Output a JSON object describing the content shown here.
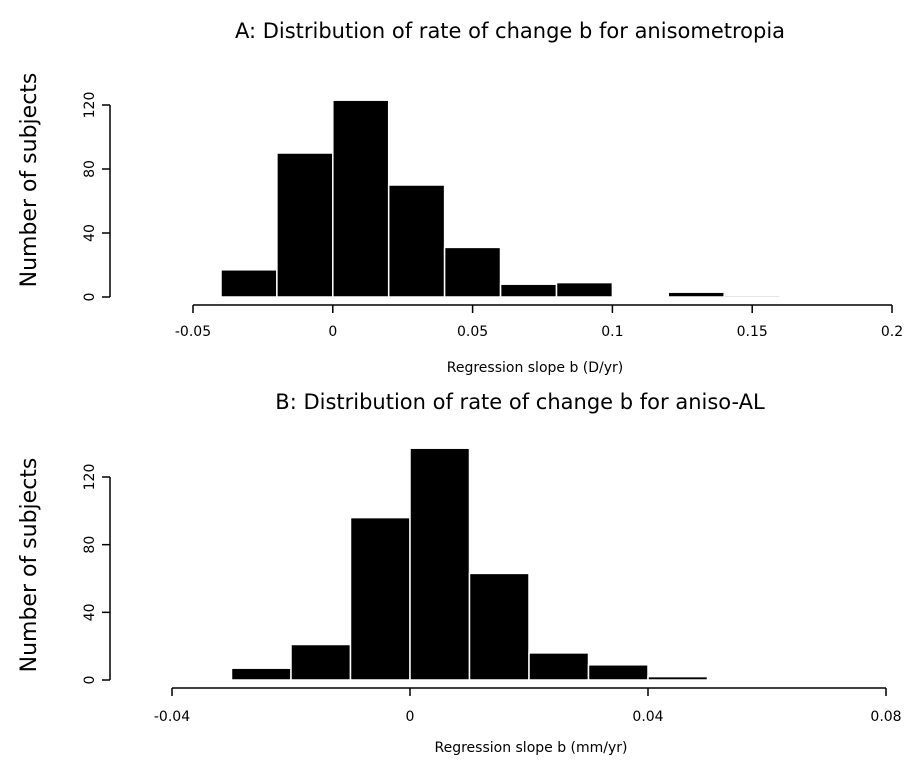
{
  "chart_data": [
    {
      "type": "bar",
      "title": "A: Distribution of rate of change b for anisometropia",
      "xlabel": "Regression slope b (D/yr)",
      "ylabel": "Number of subjects",
      "xlim": [
        -0.05,
        0.2
      ],
      "ylim": [
        0,
        120
      ],
      "x_ticks": [
        "-0.05",
        "0",
        "0.05",
        "0.1",
        "0.15",
        "0.2"
      ],
      "y_ticks": [
        "0",
        "40",
        "80",
        "120"
      ],
      "bins": [
        {
          "from": -0.04,
          "to": -0.02,
          "value": 17
        },
        {
          "from": -0.02,
          "to": 0.0,
          "value": 90
        },
        {
          "from": 0.0,
          "to": 0.02,
          "value": 123
        },
        {
          "from": 0.02,
          "to": 0.04,
          "value": 70
        },
        {
          "from": 0.04,
          "to": 0.06,
          "value": 31
        },
        {
          "from": 0.06,
          "to": 0.08,
          "value": 8
        },
        {
          "from": 0.08,
          "to": 0.1,
          "value": 9
        },
        {
          "from": 0.1,
          "to": 0.12,
          "value": 0
        },
        {
          "from": 0.12,
          "to": 0.14,
          "value": 3
        },
        {
          "from": 0.14,
          "to": 0.16,
          "value": 1
        }
      ],
      "grid": false
    },
    {
      "type": "bar",
      "title": "B: Distribution of rate of change b for aniso-AL",
      "xlabel": "Regression slope b (mm/yr)",
      "ylabel": "Number of subjects",
      "xlim": [
        -0.04,
        0.08
      ],
      "ylim": [
        0,
        120
      ],
      "x_ticks": [
        "-0.04",
        "0",
        "0.04",
        "0.08"
      ],
      "y_ticks": [
        "0",
        "40",
        "80",
        "120"
      ],
      "bins": [
        {
          "from": -0.03,
          "to": -0.02,
          "value": 7
        },
        {
          "from": -0.02,
          "to": -0.01,
          "value": 21
        },
        {
          "from": -0.01,
          "to": 0.0,
          "value": 96
        },
        {
          "from": 0.0,
          "to": 0.01,
          "value": 137
        },
        {
          "from": 0.01,
          "to": 0.02,
          "value": 63
        },
        {
          "from": 0.02,
          "to": 0.03,
          "value": 16
        },
        {
          "from": 0.03,
          "to": 0.04,
          "value": 9
        },
        {
          "from": 0.04,
          "to": 0.05,
          "value": 2
        }
      ],
      "grid": false
    }
  ]
}
